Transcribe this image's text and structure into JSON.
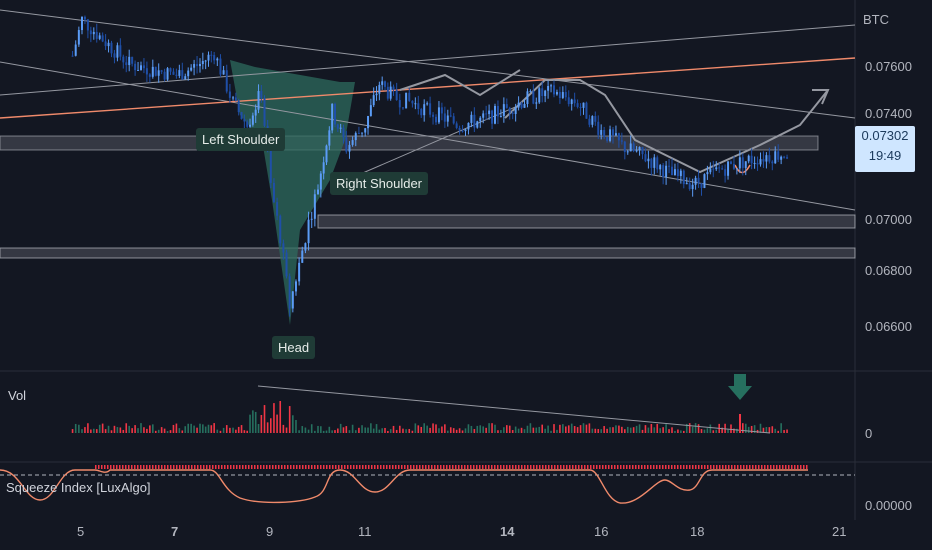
{
  "symbol": "BTC",
  "colors": {
    "background": "#131722",
    "up": "#5b9cf6",
    "down": "#1f4fa8",
    "pattern_fill": "#2e6b5e",
    "trend_line": "#9598a1",
    "orange_line": "#f08a6b",
    "zone": "#d1d4dc",
    "arrow_green": "#26705f",
    "squeeze_line": "#f08a6b",
    "squeeze_dots": "#f23645",
    "price_badge_bg": "#cfe6ff"
  },
  "labels": {
    "left_shoulder": "Left Shoulder",
    "right_shoulder": "Right Shoulder",
    "head": "Head"
  },
  "price_badge": {
    "price": "0.07302",
    "countdown": "19:49"
  },
  "volume_pane": {
    "title": "Vol",
    "axis_value": "0"
  },
  "squeeze_pane": {
    "title": "Squeeze Index [LuxAlgo]",
    "axis_value": "0.00000"
  },
  "chart_data": {
    "type": "candlestick",
    "title": "",
    "xlabel": "",
    "ylabel": "",
    "y_ticks": [
      "0.07600",
      "0.07400",
      "0.07000",
      "0.06800",
      "0.06600"
    ],
    "x_ticks": [
      "5",
      "7",
      "9",
      "11",
      "14",
      "16",
      "18",
      "21"
    ],
    "ylim": [
      0.0652,
      0.0785
    ],
    "grid": false,
    "series": [
      {
        "x": [
          4.8,
          5.0,
          5.5,
          6.0,
          6.5,
          7.0,
          7.5,
          7.8,
          8.2,
          8.5,
          8.8,
          9.0,
          9.2,
          9.4,
          9.6,
          9.8,
          10.0,
          10.3,
          10.6,
          11.0,
          11.3,
          11.6,
          12.0,
          12.5,
          13.0,
          13.5,
          14.0,
          14.5,
          15.0,
          15.5,
          16.0,
          16.5,
          17.0,
          17.5,
          18.0,
          18.5,
          19.0,
          19.5,
          20.0
        ],
        "y": [
          0.0765,
          0.0778,
          0.077,
          0.0762,
          0.076,
          0.0758,
          0.0762,
          0.0766,
          0.0748,
          0.074,
          0.0752,
          0.0718,
          0.07,
          0.0675,
          0.069,
          0.0705,
          0.0718,
          0.0745,
          0.0732,
          0.074,
          0.0755,
          0.075,
          0.0748,
          0.0744,
          0.074,
          0.0742,
          0.0746,
          0.075,
          0.0752,
          0.0748,
          0.0738,
          0.0732,
          0.0728,
          0.0722,
          0.0719,
          0.0724,
          0.0727,
          0.0729,
          0.073
        ]
      }
    ]
  }
}
